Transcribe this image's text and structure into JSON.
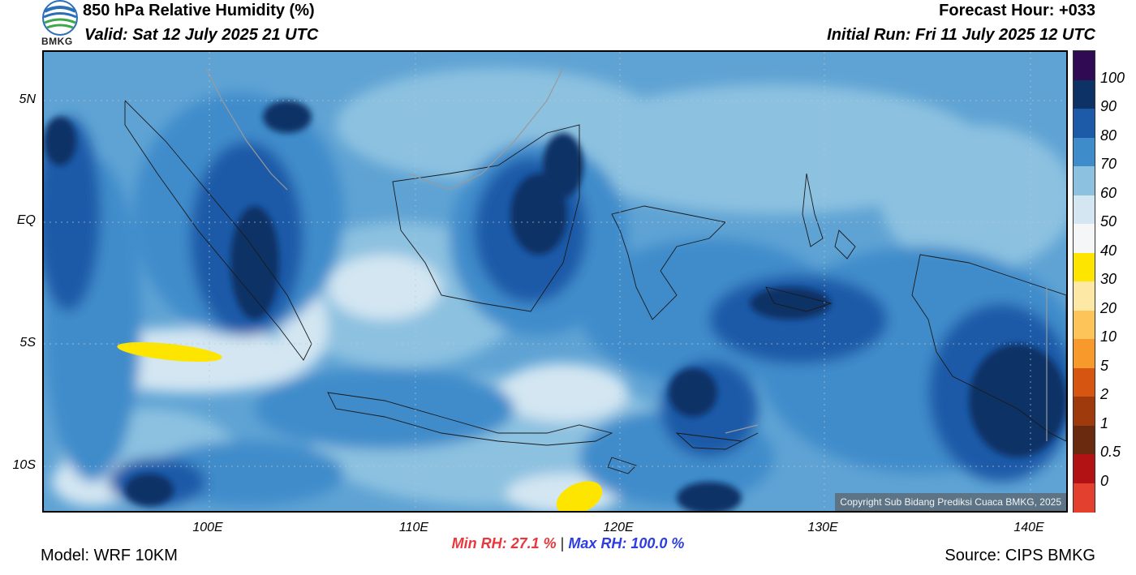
{
  "header": {
    "title": "850 hPa Relative Humidity (%)",
    "valid": "Valid: Sat 12 July 2025 21 UTC",
    "forecast_hour": "Forecast Hour: +033",
    "initial_run": "Initial Run: Fri 11 July 2025 12 UTC",
    "logo_text": "BMKG"
  },
  "map": {
    "lat_labels": [
      "5N",
      "EQ",
      "5S",
      "10S"
    ],
    "lon_labels": [
      "100E",
      "110E",
      "120E",
      "130E",
      "140E"
    ],
    "copyright": "Copyright Sub Bidang Prediksi Cuaca BMKG, 2025"
  },
  "stats": {
    "min": "Min RH:  27.1 %",
    "separator": "|",
    "max": "Max RH: 100.0 %"
  },
  "colorbar": {
    "labels": [
      "100",
      "90",
      "80",
      "70",
      "60",
      "50",
      "40",
      "30",
      "20",
      "10",
      "5",
      "2",
      "1",
      "0.5",
      "0"
    ],
    "colors": [
      "#300a52",
      "#0d3266",
      "#1d5aa8",
      "#3f8ccb",
      "#8cc1e0",
      "#d3e6f2",
      "#f4f6f8",
      "#fde500",
      "#fde8a6",
      "#fdc45a",
      "#f8992c",
      "#d65510",
      "#9e3a0c",
      "#6a2a10",
      "#b31215",
      "#e44030"
    ]
  },
  "footer": {
    "model": "Model: WRF 10KM",
    "source": "Source: CIPS BMKG"
  }
}
